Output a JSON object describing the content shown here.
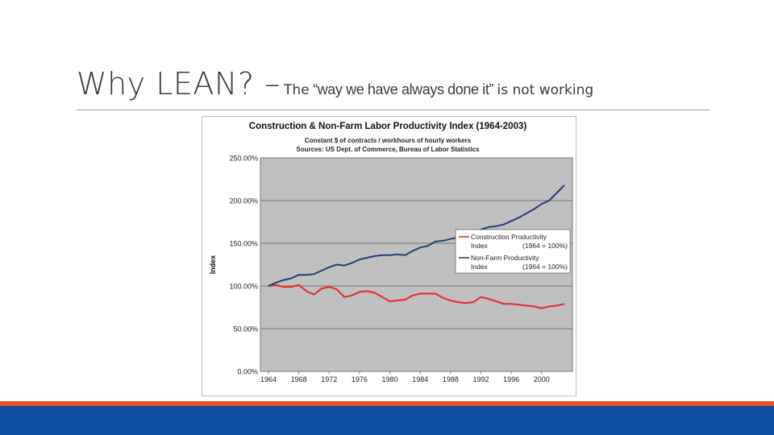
{
  "slide": {
    "title": "Why LEAN? –",
    "subtitle_pre": "The",
    "subtitle_quote": "“way we have always done it”",
    "subtitle_post": "is not working"
  },
  "colors": {
    "construction": "#e8262a",
    "nonfarm": "#1f3d7a",
    "plot_bg": "#c0c0c0",
    "accent_orange": "#e8541b",
    "accent_blue": "#0c4da2"
  },
  "chart_data": {
    "type": "line",
    "title": "Construction & Non-Farm Labor Productivity Index (1964-2003)",
    "subtitle": "Constant $ of contracts / workhours of hourly workers",
    "source": "Sources: US Dept. of Commerce, Bureau of Labor Statistics",
    "ylabel": "Index",
    "xlabel": "",
    "ylim": [
      0,
      250
    ],
    "xlim": [
      1964,
      2003
    ],
    "yticks": [
      "0.00%",
      "50.00%",
      "100.00%",
      "150.00%",
      "200.00%",
      "250.00%"
    ],
    "xticks": [
      "1964",
      "1968",
      "1972",
      "1976",
      "1980",
      "1984",
      "1988",
      "1992",
      "1996",
      "2000"
    ],
    "grid": "horizontal",
    "legend": "right",
    "x": [
      1964,
      1965,
      1966,
      1967,
      1968,
      1969,
      1970,
      1971,
      1972,
      1973,
      1974,
      1975,
      1976,
      1977,
      1978,
      1979,
      1980,
      1981,
      1982,
      1983,
      1984,
      1985,
      1986,
      1987,
      1988,
      1989,
      1990,
      1991,
      1992,
      1993,
      1994,
      1995,
      1996,
      1997,
      1998,
      1999,
      2000,
      2001,
      2002,
      2003
    ],
    "series": [
      {
        "name": "Construction Productivity Index",
        "legend_note": "(1964 = 100%)",
        "values": [
          100,
          101,
          99,
          99,
          101,
          94,
          90,
          97,
          99,
          96,
          87,
          89,
          93,
          94,
          92,
          87,
          82,
          83,
          84,
          89,
          91,
          91,
          91,
          86,
          83,
          81,
          80,
          81,
          87,
          85,
          82,
          79,
          79,
          78,
          77,
          76,
          74,
          76,
          77,
          79
        ]
      },
      {
        "name": "Non-Farm Productivity Index",
        "legend_note": "(1964 = 100%)",
        "values": [
          100,
          104,
          107,
          109,
          113,
          113,
          114,
          118,
          122,
          125,
          124,
          127,
          131,
          133,
          135,
          136,
          136,
          137,
          136,
          141,
          145,
          147,
          152,
          153,
          155,
          157,
          157,
          160,
          166,
          169,
          170,
          172,
          176,
          180,
          185,
          190,
          196,
          200,
          209,
          218
        ]
      }
    ]
  }
}
